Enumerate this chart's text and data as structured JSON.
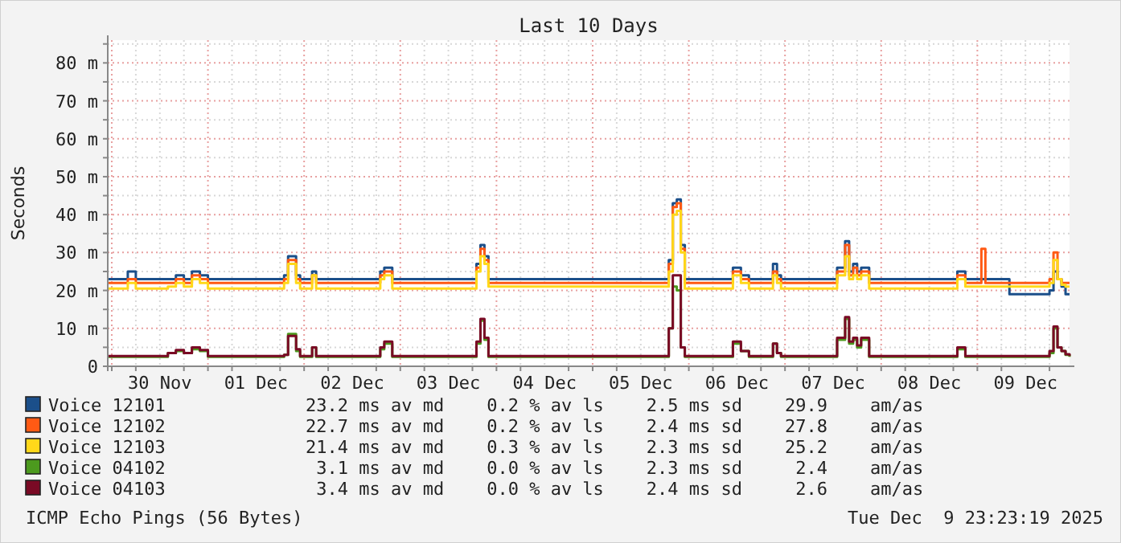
{
  "chart_data": {
    "type": "step",
    "title": "Last 10 Days",
    "ylabel": "Seconds",
    "x": [
      "2025-11-29T23:00",
      "2025-11-30T04:00",
      "2025-11-30T06:00",
      "2025-11-30T14:00",
      "2025-11-30T16:00",
      "2025-11-30T18:00",
      "2025-11-30T20:00",
      "2025-11-30T22:00",
      "2025-12-01T00:00",
      "2025-12-01T19:00",
      "2025-12-01T20:00",
      "2025-12-01T22:00",
      "2025-12-01T23:00",
      "2025-12-02T02:00",
      "2025-12-02T03:00",
      "2025-12-02T19:00",
      "2025-12-02T20:00",
      "2025-12-02T22:00",
      "2025-12-03T19:00",
      "2025-12-03T20:00",
      "2025-12-03T21:00",
      "2025-12-03T22:00",
      "2025-12-05T19:00",
      "2025-12-05T20:00",
      "2025-12-05T21:00",
      "2025-12-05T22:00",
      "2025-12-05T23:00",
      "2025-12-06T11:00",
      "2025-12-06T13:00",
      "2025-12-06T15:00",
      "2025-12-06T21:00",
      "2025-12-06T22:00",
      "2025-12-06T23:00",
      "2025-12-07T13:00",
      "2025-12-07T15:00",
      "2025-12-07T16:00",
      "2025-12-07T17:00",
      "2025-12-07T18:00",
      "2025-12-07T19:00",
      "2025-12-07T21:00",
      "2025-12-08T19:00",
      "2025-12-08T21:00",
      "2025-12-09T01:00",
      "2025-12-09T02:00",
      "2025-12-09T08:00",
      "2025-12-09T18:00",
      "2025-12-09T19:00",
      "2025-12-09T20:00",
      "2025-12-09T21:00",
      "2025-12-09T22:00",
      "2025-12-09T23:00"
    ],
    "series": [
      {
        "name": "Voice 12101",
        "color": "#1b4f8a",
        "values": [
          23,
          25,
          23,
          23,
          24,
          23,
          25,
          24,
          23,
          24,
          29,
          24,
          23,
          25,
          23,
          25,
          26,
          23,
          27,
          32,
          29,
          23,
          28,
          43,
          44,
          32,
          23,
          26,
          24,
          23,
          27,
          24,
          23,
          26,
          33,
          25,
          27,
          25,
          26,
          23,
          25,
          23,
          23,
          23,
          19,
          20,
          25,
          23,
          21,
          19,
          19
        ]
      },
      {
        "name": "Voice 12102",
        "color": "#ff5a14",
        "values": [
          22,
          23,
          22,
          22,
          23,
          22,
          24,
          23,
          22,
          23,
          28,
          23,
          22,
          24,
          22,
          24,
          25,
          22,
          26,
          31,
          28,
          22,
          27,
          42,
          43,
          31,
          22,
          25,
          23,
          22,
          25,
          23,
          22,
          25,
          32,
          24,
          26,
          24,
          25,
          22,
          24,
          22,
          31,
          22,
          22,
          23,
          30,
          23,
          22,
          22,
          22
        ]
      },
      {
        "name": "Voice 12103",
        "color": "#ffd81a",
        "values": [
          20.5,
          22,
          20.5,
          21,
          22,
          21,
          23,
          22,
          20.5,
          22,
          27,
          22,
          20.5,
          24,
          20.5,
          23,
          24,
          20.5,
          25,
          29,
          27,
          21,
          25,
          40,
          41,
          30,
          20.5,
          24,
          22,
          20.5,
          24,
          22,
          20.5,
          24,
          29,
          23,
          24,
          23,
          24,
          20.5,
          23,
          21,
          21,
          21,
          21,
          22,
          28,
          23,
          21.5,
          21,
          21
        ]
      },
      {
        "name": "Voice 04102",
        "color": "#4c9a1e",
        "values": [
          2.5,
          2.5,
          2.5,
          3.5,
          4,
          3.5,
          4.5,
          4,
          2.5,
          3,
          8.5,
          4,
          2.5,
          5,
          2.5,
          4.5,
          6,
          2.5,
          6,
          12,
          7,
          2.5,
          10,
          21,
          20,
          5,
          2.5,
          6,
          4,
          2.5,
          6,
          3.5,
          2.5,
          7,
          12.5,
          6,
          7,
          5,
          7,
          2.5,
          4.5,
          2.5,
          2.5,
          2.5,
          2.5,
          3.5,
          10,
          5,
          4,
          3,
          2.5
        ]
      },
      {
        "name": "Voice 04103",
        "color": "#7a0a25",
        "values": [
          2.7,
          2.7,
          2.7,
          3.5,
          4.3,
          3.5,
          5,
          4.3,
          2.7,
          3,
          8,
          4.5,
          2.7,
          5,
          2.7,
          5,
          6.5,
          2.7,
          6.5,
          12.5,
          7.5,
          2.7,
          10,
          24,
          24,
          5,
          2.7,
          6.5,
          4,
          2.7,
          6,
          3.5,
          2.7,
          7.5,
          13,
          6.5,
          7.5,
          5.5,
          7.5,
          2.7,
          5,
          2.7,
          2.7,
          2.7,
          2.7,
          4,
          10.5,
          5,
          4,
          3.2,
          2.7
        ]
      }
    ],
    "xlim": [
      "2025-11-29T23:00",
      "2025-12-09T23:00"
    ],
    "xticks": [
      {
        "value": "2025-11-30T00:00",
        "label": null
      },
      {
        "value": "2025-11-30T06:00",
        "label": null
      },
      {
        "value": "2025-11-30T12:00",
        "label": "30 Nov"
      },
      {
        "value": "2025-11-30T18:00",
        "label": null
      },
      {
        "value": "2025-12-01T00:00",
        "label": null
      },
      {
        "value": "2025-12-01T06:00",
        "label": null
      },
      {
        "value": "2025-12-01T12:00",
        "label": "01 Dec"
      },
      {
        "value": "2025-12-01T18:00",
        "label": null
      },
      {
        "value": "2025-12-02T00:00",
        "label": null
      },
      {
        "value": "2025-12-02T06:00",
        "label": null
      },
      {
        "value": "2025-12-02T12:00",
        "label": "02 Dec"
      },
      {
        "value": "2025-12-02T18:00",
        "label": null
      },
      {
        "value": "2025-12-03T00:00",
        "label": null
      },
      {
        "value": "2025-12-03T06:00",
        "label": null
      },
      {
        "value": "2025-12-03T12:00",
        "label": "03 Dec"
      },
      {
        "value": "2025-12-03T18:00",
        "label": null
      },
      {
        "value": "2025-12-04T00:00",
        "label": null
      },
      {
        "value": "2025-12-04T06:00",
        "label": null
      },
      {
        "value": "2025-12-04T12:00",
        "label": "04 Dec"
      },
      {
        "value": "2025-12-04T18:00",
        "label": null
      },
      {
        "value": "2025-12-05T00:00",
        "label": null
      },
      {
        "value": "2025-12-05T06:00",
        "label": null
      },
      {
        "value": "2025-12-05T12:00",
        "label": "05 Dec"
      },
      {
        "value": "2025-12-05T18:00",
        "label": null
      },
      {
        "value": "2025-12-06T00:00",
        "label": null
      },
      {
        "value": "2025-12-06T06:00",
        "label": null
      },
      {
        "value": "2025-12-06T12:00",
        "label": "06 Dec"
      },
      {
        "value": "2025-12-06T18:00",
        "label": null
      },
      {
        "value": "2025-12-07T00:00",
        "label": null
      },
      {
        "value": "2025-12-07T06:00",
        "label": null
      },
      {
        "value": "2025-12-07T12:00",
        "label": "07 Dec"
      },
      {
        "value": "2025-12-07T18:00",
        "label": null
      },
      {
        "value": "2025-12-08T00:00",
        "label": null
      },
      {
        "value": "2025-12-08T06:00",
        "label": null
      },
      {
        "value": "2025-12-08T12:00",
        "label": "08 Dec"
      },
      {
        "value": "2025-12-08T18:00",
        "label": null
      },
      {
        "value": "2025-12-09T00:00",
        "label": null
      },
      {
        "value": "2025-12-09T06:00",
        "label": null
      },
      {
        "value": "2025-12-09T12:00",
        "label": "09 Dec"
      },
      {
        "value": "2025-12-09T18:00",
        "label": null
      }
    ],
    "ylim": [
      0,
      86
    ],
    "yticks": [
      {
        "value": 0,
        "label": "0"
      },
      {
        "value": 5,
        "label": null
      },
      {
        "value": 10,
        "label": "10 m"
      },
      {
        "value": 15,
        "label": null
      },
      {
        "value": 20,
        "label": "20 m"
      },
      {
        "value": 25,
        "label": null
      },
      {
        "value": 30,
        "label": "30 m"
      },
      {
        "value": 35,
        "label": null
      },
      {
        "value": 40,
        "label": "40 m"
      },
      {
        "value": 45,
        "label": null
      },
      {
        "value": 50,
        "label": "50 m"
      },
      {
        "value": 55,
        "label": null
      },
      {
        "value": 60,
        "label": "60 m"
      },
      {
        "value": 65,
        "label": null
      },
      {
        "value": 70,
        "label": "70 m"
      },
      {
        "value": 75,
        "label": null
      },
      {
        "value": 80,
        "label": "80 m"
      },
      {
        "value": 85,
        "label": null
      }
    ],
    "grid": true,
    "legend": "bottom",
    "line_style": "solid",
    "annotations": [
      "23.2 ms av md    0.2 % av ls    2.5 ms sd    29.9    am/as",
      "22.7 ms av md    0.2 % av ls    2.4 ms sd    27.8    am/as",
      "21.4 ms av md    0.3 % av ls    2.3 ms sd    25.2    am/as",
      " 3.1 ms av md    0.0 % av ls    2.3 ms sd     2.4    am/as",
      " 3.4 ms av md    0.0 % av ls    2.4 ms sd     2.6    am/as",
      "ICMP Echo Pings (56 Bytes)",
      "Tue Dec  9 23:23:19 2025"
    ]
  }
}
